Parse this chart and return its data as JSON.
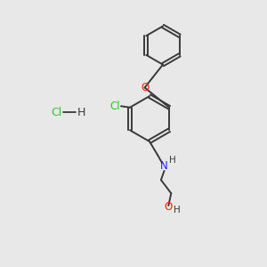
{
  "bg_color": "#e8e8e8",
  "bond_color": "#3a3a3a",
  "cl_color": "#22cc22",
  "o_color": "#ff2200",
  "n_color": "#2222ff",
  "h_color": "#3a3a3a",
  "figsize": [
    3.0,
    3.0
  ],
  "dpi": 100,
  "xlim": [
    0,
    10
  ],
  "ylim": [
    0,
    10
  ]
}
